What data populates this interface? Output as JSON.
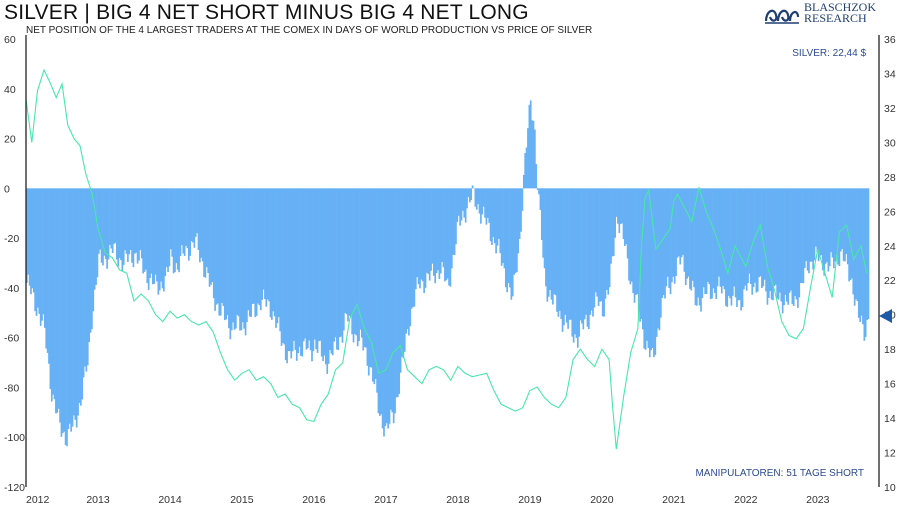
{
  "header": {
    "title": "SILVER | BIG 4 NET SHORT MINUS BIG 4 NET LONG",
    "subtitle": "NET POSITION OF THE 4 LARGEST TRADERS AT THE COMEX IN DAYS OF WORLD PRODUCTION VS PRICE OF SILVER"
  },
  "logo": {
    "line1": "BLASCHZOK",
    "line2": "RESEARCH",
    "color": "#1f3f72"
  },
  "chart_data": {
    "type": "bar",
    "title": "SILVER | BIG 4 NET SHORT MINUS BIG 4 NET LONG",
    "x_ticks": [
      "2012",
      "2013",
      "2014",
      "2015",
      "2016",
      "2017",
      "2018",
      "2019",
      "2020",
      "2021",
      "2022",
      "2023"
    ],
    "y_left": {
      "ylim": [
        -120,
        60
      ],
      "ticks": [
        "60",
        "40",
        "20",
        "0",
        "-20",
        "-40",
        "-60",
        "-80",
        "-100",
        "-120"
      ]
    },
    "y_right": {
      "ylim": [
        10,
        36
      ],
      "ticks": [
        "36",
        "34",
        "32",
        "30",
        "28",
        "26",
        "24",
        "22",
        "20",
        "18",
        "16",
        "14",
        "12",
        "10"
      ]
    },
    "series": [
      {
        "kind": "bar",
        "axis": "left",
        "color": "#66b0f5",
        "points": [
          [
            2012.0,
            -38
          ],
          [
            2012.15,
            -48
          ],
          [
            2012.25,
            -58
          ],
          [
            2012.35,
            -82
          ],
          [
            2012.45,
            -95
          ],
          [
            2012.55,
            -100
          ],
          [
            2012.65,
            -96
          ],
          [
            2012.75,
            -85
          ],
          [
            2012.85,
            -70
          ],
          [
            2012.9,
            -52
          ],
          [
            2013.0,
            -30
          ],
          [
            2013.2,
            -25
          ],
          [
            2013.35,
            -30
          ],
          [
            2013.5,
            -26
          ],
          [
            2013.65,
            -34
          ],
          [
            2013.8,
            -40
          ],
          [
            2013.95,
            -36
          ],
          [
            2014.0,
            -28
          ],
          [
            2014.1,
            -32
          ],
          [
            2014.2,
            -25
          ],
          [
            2014.35,
            -22
          ],
          [
            2014.45,
            -30
          ],
          [
            2014.55,
            -40
          ],
          [
            2014.7,
            -50
          ],
          [
            2014.85,
            -56
          ],
          [
            2015.0,
            -55
          ],
          [
            2015.1,
            -52
          ],
          [
            2015.25,
            -45
          ],
          [
            2015.4,
            -48
          ],
          [
            2015.55,
            -62
          ],
          [
            2015.65,
            -68
          ],
          [
            2015.8,
            -64
          ],
          [
            2015.95,
            -65
          ],
          [
            2016.0,
            -62
          ],
          [
            2016.15,
            -70
          ],
          [
            2016.3,
            -64
          ],
          [
            2016.45,
            -52
          ],
          [
            2016.55,
            -58
          ],
          [
            2016.7,
            -65
          ],
          [
            2016.8,
            -75
          ],
          [
            2016.9,
            -90
          ],
          [
            2017.0,
            -98
          ],
          [
            2017.1,
            -90
          ],
          [
            2017.2,
            -75
          ],
          [
            2017.3,
            -55
          ],
          [
            2017.45,
            -38
          ],
          [
            2017.6,
            -36
          ],
          [
            2017.75,
            -32
          ],
          [
            2017.85,
            -40
          ],
          [
            2018.0,
            -15
          ],
          [
            2018.1,
            -8
          ],
          [
            2018.2,
            -3
          ],
          [
            2018.35,
            -12
          ],
          [
            2018.45,
            -18
          ],
          [
            2018.55,
            -25
          ],
          [
            2018.65,
            -35
          ],
          [
            2018.75,
            -45
          ],
          [
            2018.85,
            -20
          ],
          [
            2018.92,
            10
          ],
          [
            2019.0,
            35
          ],
          [
            2019.05,
            27
          ],
          [
            2019.1,
            0
          ],
          [
            2019.2,
            -38
          ],
          [
            2019.35,
            -48
          ],
          [
            2019.5,
            -55
          ],
          [
            2019.65,
            -60
          ],
          [
            2019.8,
            -52
          ],
          [
            2019.95,
            -45
          ],
          [
            2020.0,
            -48
          ],
          [
            2020.1,
            -40
          ],
          [
            2020.2,
            -10
          ],
          [
            2020.3,
            -22
          ],
          [
            2020.4,
            -38
          ],
          [
            2020.5,
            -50
          ],
          [
            2020.6,
            -62
          ],
          [
            2020.7,
            -70
          ],
          [
            2020.8,
            -50
          ],
          [
            2020.9,
            -40
          ],
          [
            2021.0,
            -35
          ],
          [
            2021.1,
            -28
          ],
          [
            2021.2,
            -38
          ],
          [
            2021.3,
            -46
          ],
          [
            2021.45,
            -42
          ],
          [
            2021.6,
            -40
          ],
          [
            2021.75,
            -44
          ],
          [
            2021.9,
            -46
          ],
          [
            2022.0,
            -40
          ],
          [
            2022.15,
            -38
          ],
          [
            2022.3,
            -42
          ],
          [
            2022.45,
            -44
          ],
          [
            2022.6,
            -46
          ],
          [
            2022.75,
            -42
          ],
          [
            2022.85,
            -30
          ],
          [
            2023.0,
            -28
          ],
          [
            2023.15,
            -32
          ],
          [
            2023.3,
            -26
          ],
          [
            2023.45,
            -35
          ],
          [
            2023.55,
            -52
          ],
          [
            2023.65,
            -57
          ],
          [
            2023.7,
            -51
          ]
        ]
      },
      {
        "kind": "line",
        "axis": "right",
        "name": "SILVER",
        "color": "#47e8a9",
        "points": [
          [
            2012.0,
            32.5
          ],
          [
            2012.08,
            30.0
          ],
          [
            2012.16,
            33.0
          ],
          [
            2012.25,
            34.2
          ],
          [
            2012.33,
            33.5
          ],
          [
            2012.42,
            32.6
          ],
          [
            2012.5,
            33.4
          ],
          [
            2012.58,
            31.0
          ],
          [
            2012.67,
            30.2
          ],
          [
            2012.75,
            29.8
          ],
          [
            2012.83,
            28.2
          ],
          [
            2012.92,
            27.0
          ],
          [
            2013.0,
            25.0
          ],
          [
            2013.1,
            23.6
          ],
          [
            2013.2,
            23.3
          ],
          [
            2013.3,
            22.6
          ],
          [
            2013.4,
            22.4
          ],
          [
            2013.5,
            20.8
          ],
          [
            2013.6,
            21.2
          ],
          [
            2013.7,
            20.8
          ],
          [
            2013.8,
            20.0
          ],
          [
            2013.9,
            19.6
          ],
          [
            2014.0,
            20.2
          ],
          [
            2014.1,
            19.8
          ],
          [
            2014.2,
            20.0
          ],
          [
            2014.3,
            19.6
          ],
          [
            2014.4,
            19.4
          ],
          [
            2014.5,
            19.6
          ],
          [
            2014.6,
            19.0
          ],
          [
            2014.7,
            17.8
          ],
          [
            2014.8,
            16.8
          ],
          [
            2014.9,
            16.2
          ],
          [
            2015.0,
            16.6
          ],
          [
            2015.1,
            16.8
          ],
          [
            2015.2,
            16.2
          ],
          [
            2015.3,
            16.4
          ],
          [
            2015.4,
            16.0
          ],
          [
            2015.5,
            15.2
          ],
          [
            2015.6,
            15.4
          ],
          [
            2015.7,
            14.8
          ],
          [
            2015.8,
            14.6
          ],
          [
            2015.9,
            13.9
          ],
          [
            2016.0,
            13.8
          ],
          [
            2016.1,
            14.8
          ],
          [
            2016.2,
            15.4
          ],
          [
            2016.3,
            16.8
          ],
          [
            2016.4,
            17.2
          ],
          [
            2016.5,
            19.8
          ],
          [
            2016.6,
            20.6
          ],
          [
            2016.7,
            19.2
          ],
          [
            2016.8,
            18.4
          ],
          [
            2016.9,
            16.6
          ],
          [
            2017.0,
            16.8
          ],
          [
            2017.1,
            17.8
          ],
          [
            2017.2,
            18.2
          ],
          [
            2017.3,
            16.8
          ],
          [
            2017.4,
            16.4
          ],
          [
            2017.5,
            16.0
          ],
          [
            2017.6,
            16.8
          ],
          [
            2017.7,
            17.0
          ],
          [
            2017.8,
            16.8
          ],
          [
            2017.9,
            16.2
          ],
          [
            2018.0,
            17.0
          ],
          [
            2018.1,
            16.6
          ],
          [
            2018.2,
            16.4
          ],
          [
            2018.3,
            16.5
          ],
          [
            2018.4,
            16.6
          ],
          [
            2018.5,
            15.6
          ],
          [
            2018.6,
            14.8
          ],
          [
            2018.7,
            14.6
          ],
          [
            2018.8,
            14.4
          ],
          [
            2018.9,
            14.6
          ],
          [
            2019.0,
            15.6
          ],
          [
            2019.1,
            15.8
          ],
          [
            2019.2,
            15.2
          ],
          [
            2019.3,
            14.8
          ],
          [
            2019.4,
            14.6
          ],
          [
            2019.5,
            15.2
          ],
          [
            2019.6,
            17.4
          ],
          [
            2019.7,
            18.0
          ],
          [
            2019.8,
            17.4
          ],
          [
            2019.9,
            17.0
          ],
          [
            2020.0,
            18.0
          ],
          [
            2020.1,
            17.4
          ],
          [
            2020.15,
            14.6
          ],
          [
            2020.2,
            12.2
          ],
          [
            2020.3,
            15.2
          ],
          [
            2020.4,
            17.8
          ],
          [
            2020.5,
            19.2
          ],
          [
            2020.55,
            24.0
          ],
          [
            2020.6,
            26.8
          ],
          [
            2020.65,
            27.2
          ],
          [
            2020.75,
            23.8
          ],
          [
            2020.85,
            24.4
          ],
          [
            2020.95,
            25.0
          ],
          [
            2021.0,
            26.6
          ],
          [
            2021.05,
            27.0
          ],
          [
            2021.15,
            26.2
          ],
          [
            2021.25,
            25.4
          ],
          [
            2021.35,
            27.4
          ],
          [
            2021.45,
            26.0
          ],
          [
            2021.55,
            25.0
          ],
          [
            2021.65,
            23.8
          ],
          [
            2021.75,
            22.4
          ],
          [
            2021.85,
            24.0
          ],
          [
            2021.95,
            23.2
          ],
          [
            2022.0,
            22.8
          ],
          [
            2022.1,
            24.2
          ],
          [
            2022.2,
            25.2
          ],
          [
            2022.3,
            22.8
          ],
          [
            2022.4,
            21.4
          ],
          [
            2022.5,
            19.6
          ],
          [
            2022.6,
            18.8
          ],
          [
            2022.7,
            18.6
          ],
          [
            2022.8,
            19.2
          ],
          [
            2022.9,
            21.6
          ],
          [
            2023.0,
            23.8
          ],
          [
            2023.1,
            22.4
          ],
          [
            2023.2,
            21.0
          ],
          [
            2023.3,
            24.8
          ],
          [
            2023.4,
            25.2
          ],
          [
            2023.5,
            23.2
          ],
          [
            2023.6,
            24.0
          ],
          [
            2023.68,
            22.4
          ]
        ]
      }
    ],
    "annotations": {
      "price_label": "SILVER: 22,44 $",
      "net_label": "MANIPULATOREN: 51 TAGE SHORT"
    },
    "grid": false,
    "legend": "none"
  }
}
